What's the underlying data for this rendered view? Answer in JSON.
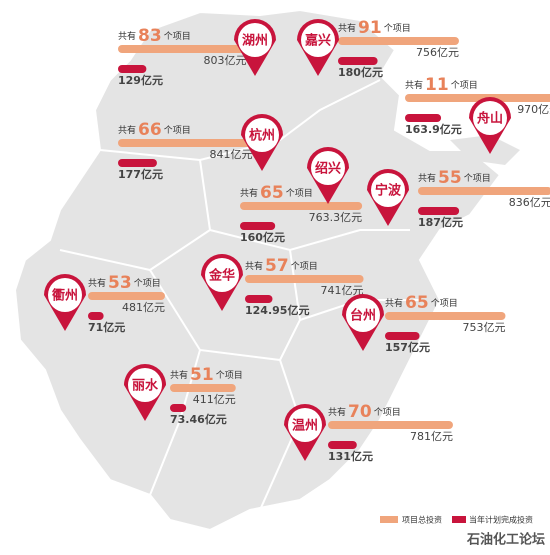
{
  "count_prefix": "共有",
  "count_suffix": "个项目",
  "total_color": "#f0a57c",
  "annual_color": "#c8143c",
  "cities": [
    {
      "name": "湖州",
      "count": 83,
      "total": 803,
      "total_label": "803亿元",
      "annual": 129,
      "annual_label": "129亿元"
    },
    {
      "name": "嘉兴",
      "count": 91,
      "total": 756,
      "total_label": "756亿元",
      "annual": 180,
      "annual_label": "180亿元"
    },
    {
      "name": "舟山",
      "count": 11,
      "total": 970,
      "total_label": "970亿元",
      "annual": 163.9,
      "annual_label": "163.9亿元"
    },
    {
      "name": "杭州",
      "count": 66,
      "total": 841,
      "total_label": "841亿元",
      "annual": 177,
      "annual_label": "177亿元"
    },
    {
      "name": "绍兴",
      "count": 65,
      "total": 763.3,
      "total_label": "763.3亿元",
      "annual": 160,
      "annual_label": "160亿元"
    },
    {
      "name": "宁波",
      "count": 55,
      "total": 836,
      "total_label": "836亿元",
      "annual": 187,
      "annual_label": "187亿元"
    },
    {
      "name": "衢州",
      "count": 53,
      "total": 481,
      "total_label": "481亿元",
      "annual": 71,
      "annual_label": "71亿元"
    },
    {
      "name": "金华",
      "count": 57,
      "total": 741,
      "total_label": "741亿元",
      "annual": 124.95,
      "annual_label": "124.95亿元"
    },
    {
      "name": "台州",
      "count": 65,
      "total": 753,
      "total_label": "753亿元",
      "annual": 157,
      "annual_label": "157亿元"
    },
    {
      "name": "丽水",
      "count": 51,
      "total": 411,
      "total_label": "411亿元",
      "annual": 73.46,
      "annual_label": "73.46亿元"
    },
    {
      "name": "温州",
      "count": 70,
      "total": 781,
      "total_label": "781亿元",
      "annual": 131,
      "annual_label": "131亿元"
    }
  ],
  "legend": {
    "total": "项目总投资",
    "annual": "当年计划完成投资"
  },
  "watermark": "石油化工论坛"
}
